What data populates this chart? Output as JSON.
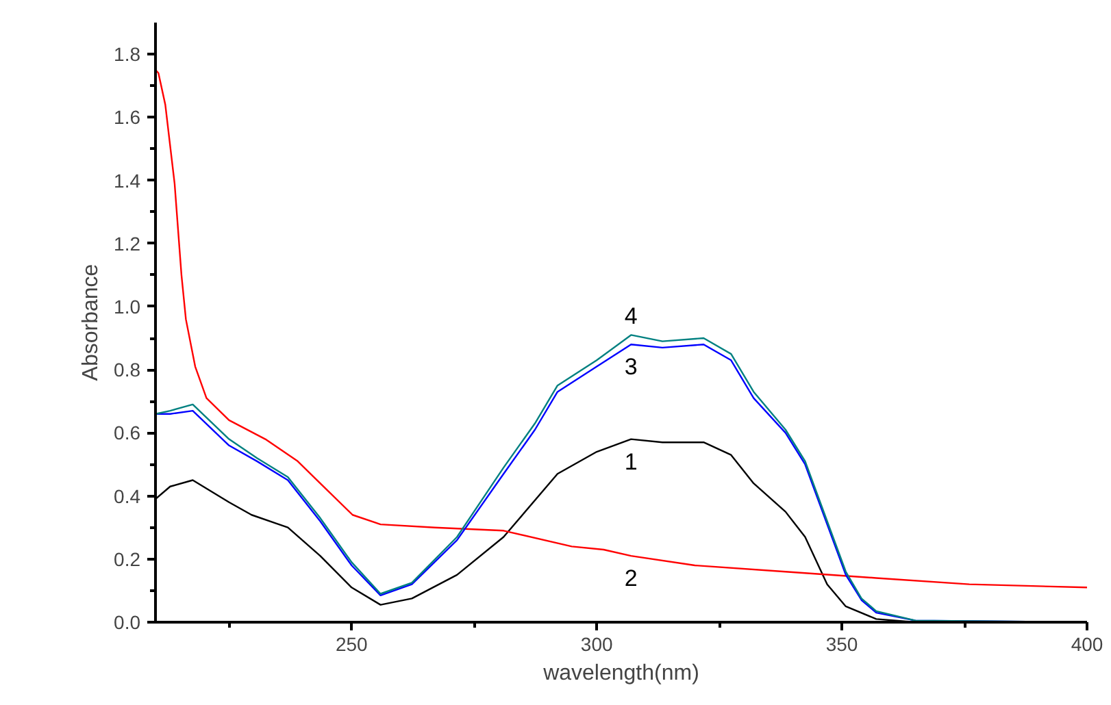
{
  "chart_data": {
    "type": "line",
    "xlabel": "wavelength(nm)",
    "ylabel": "Absorbance",
    "xlim": [
      210,
      400
    ],
    "ylim": [
      0,
      1.9
    ],
    "xticks": [
      {
        "value": 225,
        "label": null
      },
      250,
      {
        "value": 275,
        "label": null
      },
      300,
      {
        "value": 325,
        "label": null
      },
      350,
      {
        "value": 375,
        "label": null
      },
      400
    ],
    "yticks": [
      {
        "value": 0,
        "label": "0.0"
      },
      {
        "value": 0.1,
        "label": null
      },
      0.2,
      {
        "value": 0.3,
        "label": null
      },
      0.4,
      {
        "value": 0.5,
        "label": null
      },
      0.6,
      {
        "value": 0.7,
        "label": null
      },
      0.8,
      {
        "value": 0.9,
        "label": null
      },
      {
        "value": 1.0,
        "label": "1.0"
      },
      {
        "value": 1.1,
        "label": null
      },
      1.2,
      {
        "value": 1.3,
        "label": null
      },
      1.4,
      {
        "value": 1.5,
        "label": null
      },
      1.6,
      {
        "value": 1.7,
        "label": null
      },
      1.8
    ],
    "grid": false,
    "legend": false,
    "marker": "none",
    "line_style": "solid",
    "series": [
      {
        "name": "1",
        "color": "#000000",
        "x": [
          210,
          213,
          217.6,
          225,
          229.6,
          237,
          243.6,
          250,
          255.9,
          262.3,
          271.5,
          281,
          292,
          300,
          307,
          313.4,
          321.8,
          327.4,
          332,
          338.5,
          342.5,
          347,
          350.8,
          357,
          365,
          400
        ],
        "values": [
          0.39,
          0.43,
          0.45,
          0.38,
          0.34,
          0.3,
          0.21,
          0.11,
          0.055,
          0.075,
          0.15,
          0.27,
          0.47,
          0.54,
          0.58,
          0.57,
          0.57,
          0.53,
          0.44,
          0.35,
          0.27,
          0.12,
          0.05,
          0.01,
          0,
          0
        ]
      },
      {
        "name": "2",
        "color": "#ff0000",
        "x": [
          210,
          210.6,
          212,
          213.9,
          215.3,
          216.2,
          218.1,
          220.4,
          225,
          232.4,
          239,
          243.6,
          250.2,
          255.9,
          267,
          281,
          294.9,
          301.4,
          307,
          320,
          338.5,
          357,
          376,
          400
        ],
        "values": [
          1.75,
          1.74,
          1.64,
          1.39,
          1.1,
          0.96,
          0.81,
          0.71,
          0.64,
          0.58,
          0.51,
          0.44,
          0.34,
          0.31,
          0.3,
          0.29,
          0.24,
          0.23,
          0.21,
          0.18,
          0.16,
          0.14,
          0.12,
          0.11
        ]
      },
      {
        "name": "3",
        "color": "#0000ff",
        "x": [
          210,
          213,
          217.6,
          225,
          230.7,
          237,
          243.6,
          250,
          255.9,
          262.3,
          271.5,
          281,
          287.4,
          292,
          300,
          307,
          313.4,
          321.8,
          327.4,
          332,
          338.5,
          342.5,
          347,
          350.8,
          354,
          357,
          365,
          400
        ],
        "values": [
          0.66,
          0.66,
          0.67,
          0.56,
          0.51,
          0.45,
          0.32,
          0.18,
          0.085,
          0.12,
          0.26,
          0.47,
          0.61,
          0.73,
          0.81,
          0.88,
          0.87,
          0.88,
          0.83,
          0.71,
          0.6,
          0.5,
          0.31,
          0.15,
          0.07,
          0.03,
          0.005,
          0
        ]
      },
      {
        "name": "4",
        "color": "#008080",
        "x": [
          210,
          213,
          217.6,
          225,
          230.7,
          237,
          243.6,
          250,
          255.9,
          262.3,
          271.5,
          281,
          287.4,
          292,
          300,
          307,
          313.4,
          321.8,
          327.4,
          332,
          338.5,
          342.5,
          347,
          350.8,
          354,
          357,
          365,
          400
        ],
        "values": [
          0.66,
          0.67,
          0.69,
          0.58,
          0.52,
          0.46,
          0.33,
          0.19,
          0.09,
          0.125,
          0.27,
          0.49,
          0.63,
          0.75,
          0.83,
          0.91,
          0.89,
          0.9,
          0.85,
          0.73,
          0.61,
          0.51,
          0.32,
          0.16,
          0.075,
          0.035,
          0.005,
          0
        ]
      }
    ]
  }
}
